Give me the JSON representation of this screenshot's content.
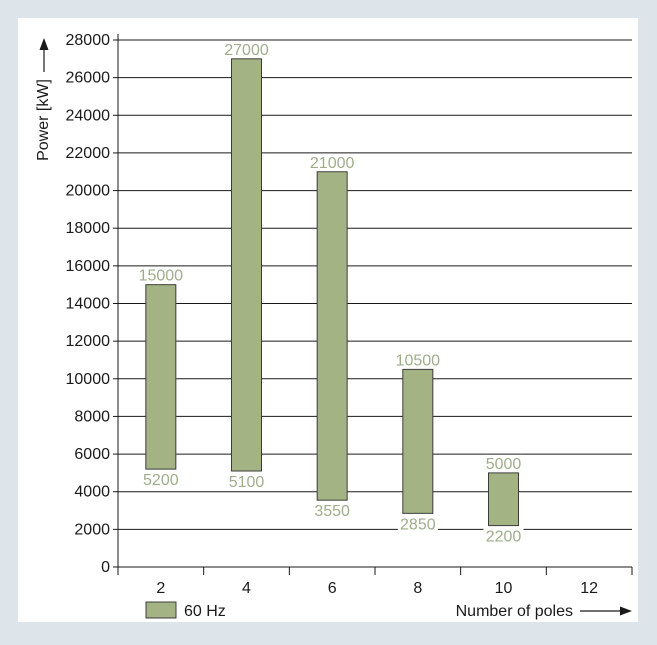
{
  "chart_data": {
    "type": "range-bar",
    "categories": [
      "2",
      "4",
      "6",
      "8",
      "10",
      "12"
    ],
    "series": [
      {
        "name": "60 Hz",
        "low": [
          5200,
          5100,
          3550,
          2850,
          2200,
          null
        ],
        "high": [
          15000,
          27000,
          21000,
          10500,
          5000,
          null
        ]
      }
    ],
    "ylabel": "Power [kW]",
    "xlabel": "Number of poles",
    "ylim": [
      0,
      28000
    ],
    "yticks": [
      0,
      2000,
      4000,
      6000,
      8000,
      10000,
      12000,
      14000,
      16000,
      18000,
      20000,
      22000,
      24000,
      26000,
      28000
    ],
    "grid": true,
    "legend_position": "bottom-left"
  },
  "colors": {
    "background": "#dde5ea",
    "plot_background": "#ffffff",
    "bar_fill": "#a3b383",
    "bar_stroke": "#3c3c3c",
    "value_label": "#a0ad8c",
    "axis": "#1a1a1a"
  }
}
